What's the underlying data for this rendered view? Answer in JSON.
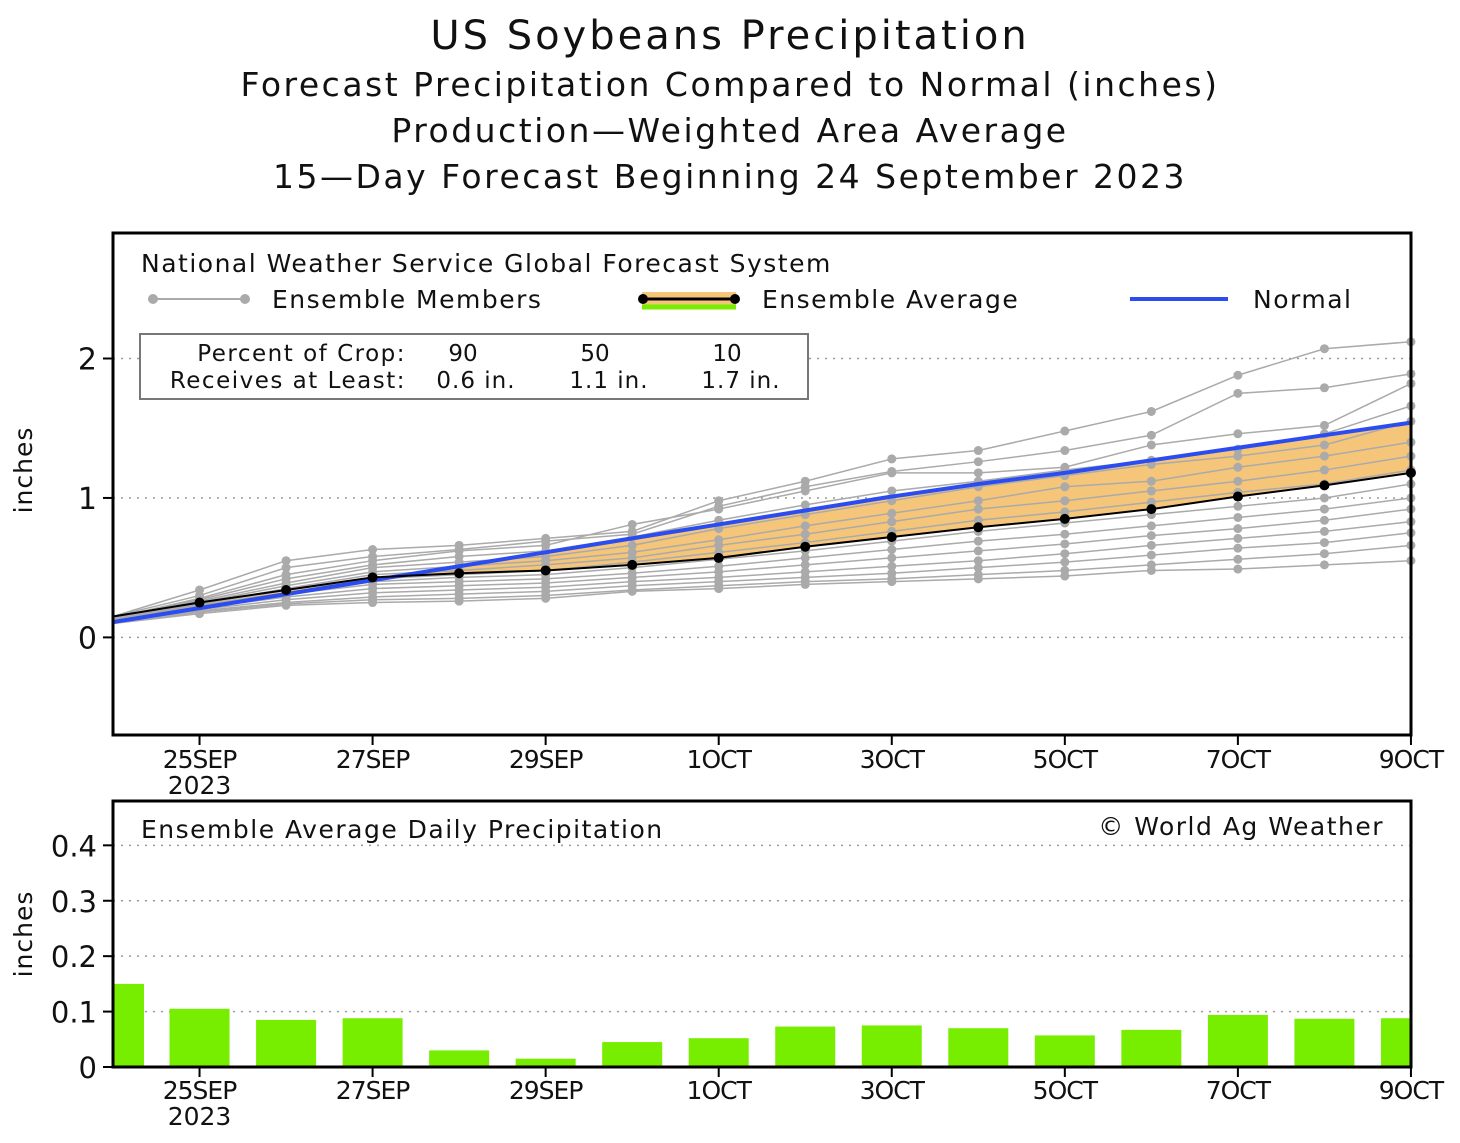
{
  "titles": {
    "main": "US Soybeans Precipitation",
    "line2": "Forecast Precipitation Compared to Normal (inches)",
    "line3": "Production—Weighted Area Average",
    "line4": "15—Day Forecast Beginning 24 September 2023"
  },
  "top_panel": {
    "source_label": "National Weather Service Global Forecast System",
    "legend": {
      "members": "Ensemble Members",
      "average": "Ensemble Average",
      "normal": "Normal"
    },
    "crop_box": {
      "row1_label": "Percent of Crop:",
      "row2_label": "Receives at Least:",
      "pct": [
        "90",
        "50",
        "10"
      ],
      "amt": [
        "0.6 in.",
        "1.1 in.",
        "1.7 in."
      ]
    },
    "ylabel": "inches",
    "y_ticks": [
      "2",
      "1",
      "0"
    ],
    "x_ticks": [
      "25SEP",
      "27SEP",
      "29SEP",
      "1OCT",
      "3OCT",
      "5OCT",
      "7OCT",
      "9OCT"
    ],
    "x_year": "2023"
  },
  "bottom_panel": {
    "label": "Ensemble Average Daily Precipitation",
    "copyright": "© World Ag Weather",
    "ylabel": "inches",
    "y_ticks": [
      "0.4",
      "0.3",
      "0.2",
      "0.1",
      "0"
    ],
    "x_ticks": [
      "25SEP",
      "27SEP",
      "29SEP",
      "1OCT",
      "3OCT",
      "5OCT",
      "7OCT",
      "9OCT"
    ],
    "x_year": "2023"
  },
  "colors": {
    "member": "#aaaaaa",
    "average": "#000000",
    "normal": "#2a4cf0",
    "band": "#f5c57a",
    "bars": "#77ee00"
  },
  "chart_data": [
    {
      "type": "line",
      "title": "US Soybeans Precipitation",
      "ylabel": "inches",
      "ylim": [
        -0.7,
        2.9
      ],
      "x": [
        "24SEP",
        "25SEP",
        "26SEP",
        "27SEP",
        "28SEP",
        "29SEP",
        "30SEP",
        "1OCT",
        "2OCT",
        "3OCT",
        "4OCT",
        "5OCT",
        "6OCT",
        "7OCT",
        "8OCT",
        "9OCT"
      ],
      "series": [
        {
          "name": "Ensemble Average",
          "values": [
            0.15,
            0.25,
            0.34,
            0.43,
            0.46,
            0.48,
            0.52,
            0.57,
            0.65,
            0.72,
            0.79,
            0.85,
            0.92,
            1.01,
            1.09,
            1.18
          ]
        },
        {
          "name": "Normal",
          "values": [
            0.11,
            0.21,
            0.31,
            0.41,
            0.51,
            0.61,
            0.71,
            0.81,
            0.91,
            1.01,
            1.1,
            1.18,
            1.27,
            1.36,
            1.45,
            1.54
          ]
        }
      ],
      "ensemble_members": [
        [
          0.15,
          0.34,
          0.55,
          0.63,
          0.66,
          0.71,
          0.76,
          0.98,
          1.12,
          1.28,
          1.34,
          1.48,
          1.62,
          1.88,
          2.07,
          2.12
        ],
        [
          0.15,
          0.3,
          0.5,
          0.58,
          0.63,
          0.69,
          0.74,
          0.94,
          1.08,
          1.19,
          1.26,
          1.34,
          1.45,
          1.75,
          1.79,
          1.89
        ],
        [
          0.14,
          0.28,
          0.45,
          0.55,
          0.62,
          0.66,
          0.81,
          0.92,
          1.05,
          1.18,
          1.18,
          1.22,
          1.38,
          1.46,
          1.52,
          1.82
        ],
        [
          0.14,
          0.27,
          0.42,
          0.52,
          0.58,
          0.62,
          0.72,
          0.84,
          0.95,
          1.05,
          1.12,
          1.2,
          1.27,
          1.35,
          1.46,
          1.66
        ],
        [
          0.14,
          0.26,
          0.39,
          0.5,
          0.54,
          0.58,
          0.66,
          0.78,
          0.88,
          0.98,
          1.08,
          1.16,
          1.24,
          1.3,
          1.38,
          1.55
        ],
        [
          0.13,
          0.25,
          0.37,
          0.47,
          0.51,
          0.55,
          0.61,
          0.7,
          0.8,
          0.89,
          0.98,
          1.08,
          1.12,
          1.22,
          1.3,
          1.4
        ],
        [
          0.13,
          0.24,
          0.35,
          0.45,
          0.48,
          0.52,
          0.57,
          0.66,
          0.74,
          0.83,
          0.92,
          0.98,
          1.05,
          1.12,
          1.2,
          1.3
        ],
        [
          0.13,
          0.24,
          0.34,
          0.42,
          0.45,
          0.48,
          0.54,
          0.61,
          0.68,
          0.76,
          0.84,
          0.9,
          0.97,
          1.04,
          1.1,
          1.2
        ],
        [
          0.12,
          0.23,
          0.32,
          0.4,
          0.43,
          0.45,
          0.5,
          0.56,
          0.62,
          0.69,
          0.76,
          0.82,
          0.88,
          0.94,
          1.0,
          1.1
        ],
        [
          0.12,
          0.22,
          0.31,
          0.38,
          0.4,
          0.42,
          0.46,
          0.51,
          0.57,
          0.63,
          0.69,
          0.74,
          0.8,
          0.86,
          0.92,
          1.0
        ],
        [
          0.12,
          0.21,
          0.29,
          0.35,
          0.37,
          0.39,
          0.43,
          0.47,
          0.52,
          0.57,
          0.62,
          0.67,
          0.73,
          0.78,
          0.84,
          0.92
        ],
        [
          0.11,
          0.2,
          0.27,
          0.32,
          0.34,
          0.36,
          0.4,
          0.43,
          0.47,
          0.51,
          0.55,
          0.6,
          0.66,
          0.71,
          0.76,
          0.83
        ],
        [
          0.11,
          0.19,
          0.25,
          0.29,
          0.31,
          0.33,
          0.37,
          0.4,
          0.43,
          0.46,
          0.5,
          0.54,
          0.59,
          0.64,
          0.68,
          0.75
        ],
        [
          0.1,
          0.18,
          0.24,
          0.27,
          0.28,
          0.3,
          0.34,
          0.37,
          0.4,
          0.42,
          0.45,
          0.48,
          0.52,
          0.56,
          0.6,
          0.66
        ],
        [
          0.1,
          0.17,
          0.23,
          0.25,
          0.26,
          0.28,
          0.33,
          0.35,
          0.38,
          0.4,
          0.42,
          0.44,
          0.48,
          0.49,
          0.52,
          0.55
        ]
      ]
    },
    {
      "type": "bar",
      "title": "Ensemble Average Daily Precipitation",
      "ylabel": "inches",
      "ylim": [
        0,
        0.48
      ],
      "categories": [
        "24SEP",
        "25SEP",
        "26SEP",
        "27SEP",
        "28SEP",
        "29SEP",
        "30SEP",
        "1OCT",
        "2OCT",
        "3OCT",
        "4OCT",
        "5OCT",
        "6OCT",
        "7OCT",
        "8OCT",
        "9OCT"
      ],
      "values": [
        0.15,
        0.105,
        0.085,
        0.088,
        0.03,
        0.015,
        0.045,
        0.052,
        0.073,
        0.075,
        0.07,
        0.057,
        0.067,
        0.094,
        0.087,
        0.088
      ]
    }
  ]
}
